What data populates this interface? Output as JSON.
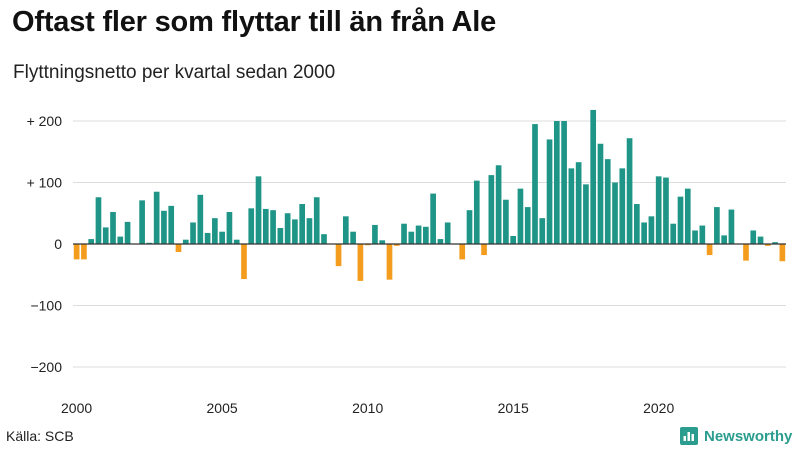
{
  "title": "Oftast fler som flyttar till än från Ale",
  "subtitle": "Flyttningsnetto per kvartal sedan 2000",
  "source": "Källa: SCB",
  "brand": "Newsworthy",
  "colors": {
    "positive": "#1f9587",
    "negative": "#f39c1d",
    "grid": "#dddddd",
    "zero": "#333333",
    "brand": "#2a9d8f"
  },
  "chart_data": {
    "type": "bar",
    "title": "Oftast fler som flyttar till än från Ale",
    "subtitle": "Flyttningsnetto per kvartal sedan 2000",
    "xlabel": "",
    "ylabel": "",
    "ylim": [
      -210,
      215
    ],
    "grid": true,
    "yticks": [
      200,
      100,
      0,
      -100,
      -200
    ],
    "ytick_labels": [
      "+ 200",
      "+ 100",
      "0",
      "−100",
      "−200"
    ],
    "xticks": [
      "2000",
      "2005",
      "2010",
      "2015",
      "2020"
    ],
    "start_year": 2000,
    "quarters_per_year": 4,
    "values": [
      -25,
      -25,
      8,
      76,
      27,
      52,
      12,
      36,
      0,
      71,
      2,
      85,
      54,
      62,
      -13,
      7,
      35,
      80,
      18,
      42,
      20,
      52,
      7,
      -57,
      58,
      110,
      57,
      55,
      26,
      50,
      40,
      65,
      42,
      76,
      16,
      0,
      -36,
      45,
      20,
      -60,
      -2,
      31,
      6,
      -58,
      -3,
      33,
      20,
      30,
      28,
      82,
      8,
      35,
      0,
      -25,
      55,
      103,
      -18,
      112,
      128,
      72,
      13,
      90,
      60,
      195,
      42,
      170,
      200,
      200,
      123,
      133,
      97,
      218,
      163,
      138,
      100,
      123,
      172,
      65,
      35,
      45,
      110,
      108,
      33,
      77,
      90,
      22,
      30,
      -18,
      60,
      14,
      56,
      0,
      -27,
      22,
      12,
      -3,
      3,
      -28
    ]
  }
}
